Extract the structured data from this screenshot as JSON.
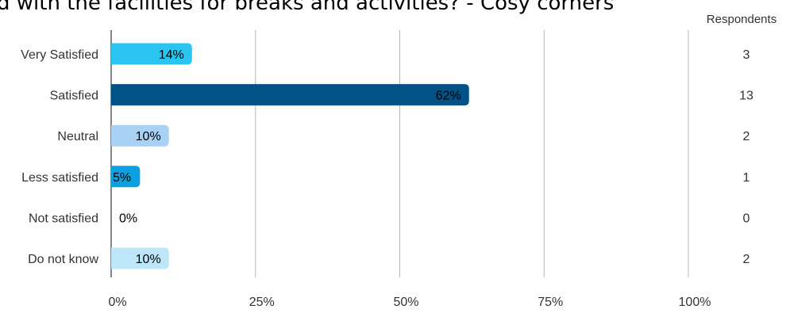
{
  "header": {
    "title": "d with the facilities for breaks and activities? - Cosy corners"
  },
  "chart_data": {
    "type": "bar",
    "orientation": "horizontal",
    "title": "d with the facilities for breaks and activities? - Cosy corners",
    "categories": [
      "Very Satisfied",
      "Satisfied",
      "Neutral",
      "Less satisfied",
      "Not satisfied",
      "Do not know"
    ],
    "values": [
      14,
      62,
      10,
      5,
      0,
      10
    ],
    "value_labels": [
      "14%",
      "62%",
      "10%",
      "5%",
      "0%",
      "10%"
    ],
    "respondents_header": "Respondents",
    "respondents": [
      3,
      13,
      2,
      1,
      0,
      2
    ],
    "xlim": [
      0,
      100
    ],
    "xticks": [
      0,
      25,
      50,
      75,
      100
    ],
    "xtick_labels": [
      "0%",
      "25%",
      "50%",
      "75%",
      "100%"
    ],
    "grid": true,
    "colors": [
      "#29c4f2",
      "#005287",
      "#a9d1f3",
      "#0ca0e0",
      "#a9d1f3",
      "#bde6f8"
    ],
    "label_colors": [
      "#000000",
      "#000000",
      "#000000",
      "#000000",
      "#000000",
      "#000000"
    ]
  }
}
